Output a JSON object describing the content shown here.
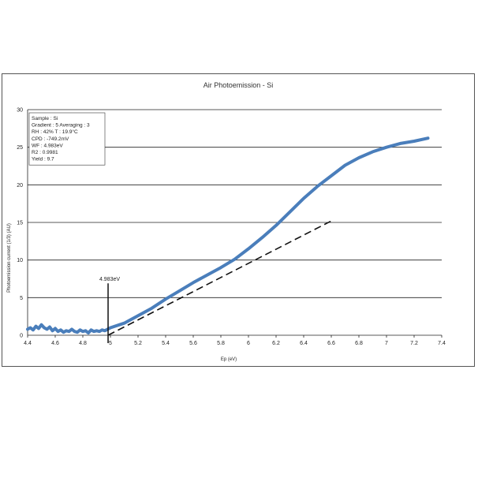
{
  "chart_data": {
    "type": "line",
    "title": "Air Photoemission - Si",
    "xlabel": "Ep (eV)",
    "ylabel": "Photoemission current (1/3) (AU)",
    "xlim": [
      4.4,
      7.4
    ],
    "ylim": [
      0,
      30
    ],
    "x_ticks": [
      "4.4",
      "4.6",
      "4.8",
      "5",
      "5.2",
      "5.4",
      "5.6",
      "5.8",
      "6",
      "6.2",
      "6.4",
      "6.6",
      "6.8",
      "7",
      "7.2",
      "7.4"
    ],
    "y_ticks": [
      "0",
      "5",
      "10",
      "15",
      "20",
      "25",
      "30"
    ],
    "grid": "horizontal",
    "series": [
      {
        "color": "#4a7ebb",
        "style": "solid",
        "x": [
          4.4,
          4.42,
          4.44,
          4.46,
          4.48,
          4.5,
          4.52,
          4.54,
          4.56,
          4.58,
          4.6,
          4.62,
          4.64,
          4.66,
          4.68,
          4.7,
          4.72,
          4.74,
          4.76,
          4.78,
          4.8,
          4.82,
          4.84,
          4.86,
          4.88,
          4.9,
          4.92,
          4.94,
          4.96,
          4.98,
          5.0,
          5.1,
          5.2,
          5.3,
          5.4,
          5.5,
          5.6,
          5.7,
          5.8,
          5.9,
          6.0,
          6.1,
          6.2,
          6.3,
          6.4,
          6.5,
          6.6,
          6.7,
          6.8,
          6.9,
          7.0,
          7.1,
          7.2,
          7.3
        ],
        "y": [
          0.8,
          1.0,
          0.7,
          1.2,
          0.9,
          1.4,
          1.0,
          0.8,
          1.1,
          0.6,
          0.9,
          0.5,
          0.7,
          0.4,
          0.6,
          0.5,
          0.8,
          0.5,
          0.4,
          0.7,
          0.5,
          0.6,
          0.3,
          0.7,
          0.5,
          0.6,
          0.5,
          0.7,
          0.6,
          0.8,
          1.0,
          1.6,
          2.6,
          3.6,
          4.8,
          5.9,
          7.0,
          8.0,
          9.0,
          10.1,
          11.5,
          13.0,
          14.6,
          16.4,
          18.2,
          19.8,
          21.2,
          22.6,
          23.6,
          24.4,
          25.0,
          25.5,
          25.8,
          26.2
        ]
      },
      {
        "color": "#111111",
        "style": "dashed",
        "x": [
          4.983,
          6.6
        ],
        "y": [
          0,
          15.2
        ]
      }
    ],
    "annotation": {
      "label": "4.983eV",
      "x": 4.983
    },
    "info_box": [
      "Sample : Si",
      "Gradient : 5    Averaging : 3",
      "RH : 42%        T :  19.9°C",
      "CPD : -749.2mV",
      "WF : 4.983eV",
      "R2 : 0.9981",
      "Yield : 9.7"
    ],
    "info_box_colors": [
      "#222222",
      "#222222",
      "#222222",
      "#222222",
      "#c0392b",
      "#c0392b",
      "#222222"
    ]
  }
}
